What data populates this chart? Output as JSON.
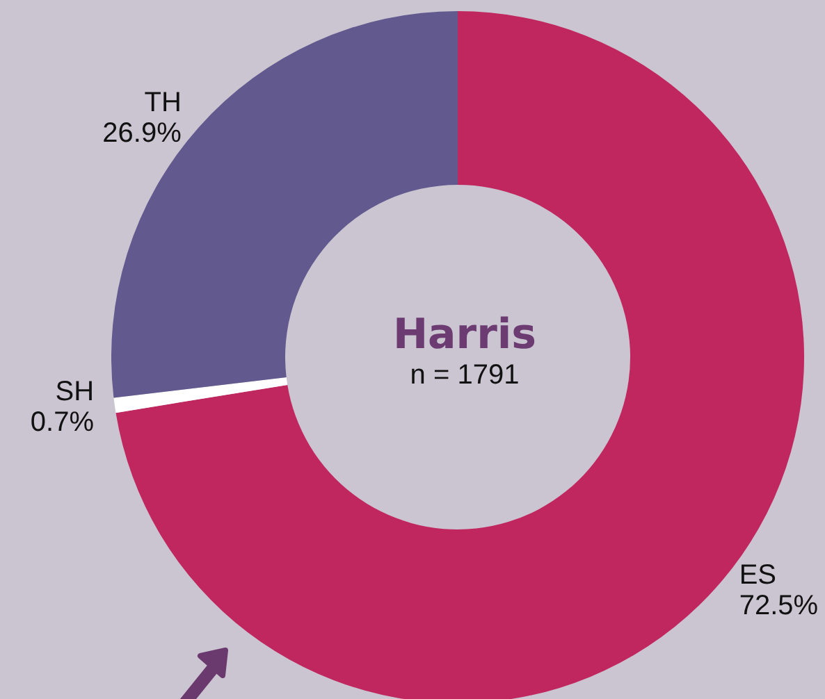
{
  "chart_data": {
    "type": "donut",
    "title": "Harris",
    "subtitle": "n = 1791",
    "categories": [
      "ES",
      "SH",
      "TH"
    ],
    "values": [
      72.5,
      0.7,
      26.9
    ],
    "colors": [
      "#c1275f",
      "#ffffff",
      "#625a8f"
    ],
    "value_labels": [
      "72.5%",
      "0.7%",
      "26.9%"
    ],
    "legend": false
  }
}
